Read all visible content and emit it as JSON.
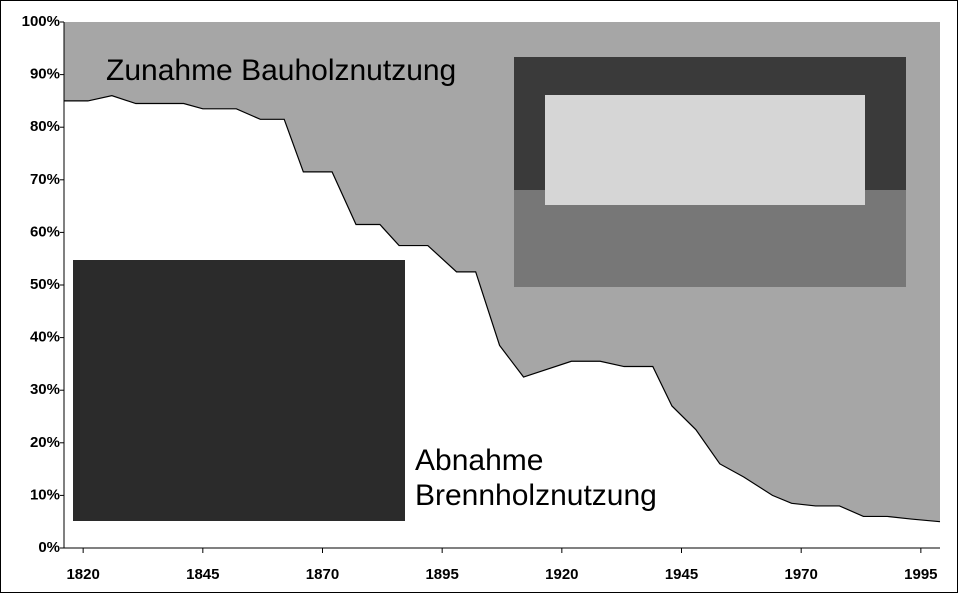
{
  "chart_data": {
    "type": "area",
    "annotations": {
      "upper": "Zunahme Bauholznutzung",
      "lower": [
        "Abnahme",
        "Brennholznutzung"
      ]
    },
    "x": [
      1816,
      1821,
      1826,
      1831,
      1841,
      1845,
      1852,
      1857,
      1862,
      1866,
      1872,
      1877,
      1882,
      1886,
      1892,
      1898,
      1902,
      1907,
      1912,
      1922,
      1928,
      1933,
      1939,
      1943,
      1948,
      1953,
      1958,
      1964,
      1968,
      1973,
      1978,
      1983,
      1988,
      1993,
      1999
    ],
    "values": [
      85,
      85,
      86,
      84.5,
      84.5,
      83.5,
      83.5,
      81.5,
      81.5,
      71.5,
      71.5,
      61.5,
      61.5,
      57.5,
      57.5,
      52.5,
      52.5,
      38.5,
      32.5,
      35.5,
      35.5,
      34.5,
      34.5,
      27,
      22.5,
      16,
      13.5,
      10,
      8.5,
      8,
      8,
      6,
      6,
      5.5,
      5
    ],
    "color": "#ffffff",
    "fill_above": "#a6a6a6",
    "line_color": "#000000",
    "xlim": [
      1816,
      1999
    ],
    "xticks": [
      1820,
      1845,
      1870,
      1895,
      1920,
      1945,
      1970,
      1995
    ],
    "ylim": [
      0,
      100
    ],
    "yticks": [
      {
        "value": 0,
        "label": "0%"
      },
      {
        "value": 10,
        "label": "10%"
      },
      {
        "value": 20,
        "label": "20%"
      },
      {
        "value": 30,
        "label": "30%"
      },
      {
        "value": 40,
        "label": "40%"
      },
      {
        "value": 50,
        "label": "50%"
      },
      {
        "value": 60,
        "label": "60%"
      },
      {
        "value": 70,
        "label": "70%"
      },
      {
        "value": 80,
        "label": "80%"
      },
      {
        "value": 90,
        "label": "90%"
      },
      {
        "value": 100,
        "label": "100%"
      }
    ]
  }
}
